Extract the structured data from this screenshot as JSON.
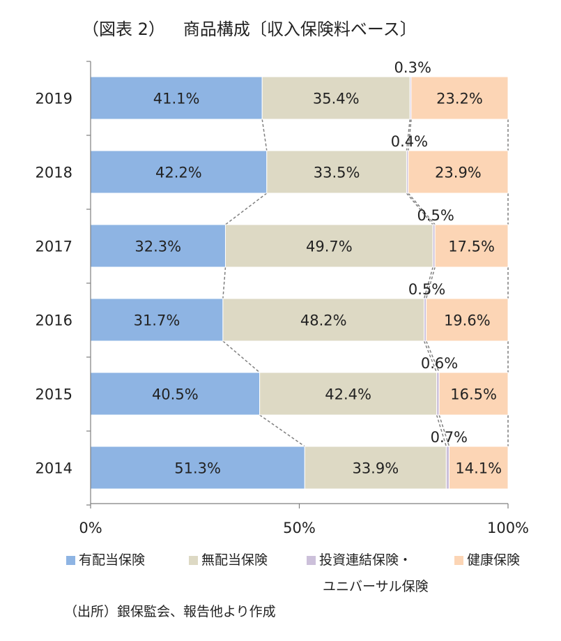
{
  "title": {
    "figure_no": "（図表 2）",
    "text": "商品構成〔収入保険料ベース〕"
  },
  "source_note": "（出所）銀保監会、報告他より作成",
  "colors": {
    "series_1": "#8eb4e3",
    "series_2": "#ddd9c4",
    "series_3": "#ccc0da",
    "series_4": "#fcd5b5",
    "axis": "#7f7f7f",
    "connector": "#7f7f7f"
  },
  "chart_data": {
    "type": "bar",
    "orientation": "horizontal",
    "stacked": "percent",
    "categories": [
      "2019",
      "2018",
      "2017",
      "2016",
      "2015",
      "2014"
    ],
    "series": [
      {
        "name": "有配当保険",
        "values": [
          41.1,
          42.2,
          32.3,
          31.7,
          40.5,
          51.3
        ],
        "labels": [
          "41.1%",
          "42.2%",
          "32.3%",
          "31.7%",
          "40.5%",
          "51.3%"
        ]
      },
      {
        "name": "無配当保険",
        "values": [
          35.4,
          33.5,
          49.7,
          48.2,
          42.4,
          33.9
        ],
        "labels": [
          "35.4%",
          "33.5%",
          "49.7%",
          "48.2%",
          "42.4%",
          "33.9%"
        ]
      },
      {
        "name": "投資連結保険・",
        "name_line2": "ユニバーサル保険",
        "values": [
          0.3,
          0.4,
          0.5,
          0.5,
          0.6,
          0.7
        ],
        "labels": [
          "0.3%",
          "0.4%",
          "0.5%",
          "0.5%",
          "0.6%",
          "0.7%"
        ]
      },
      {
        "name": "健康保険",
        "values": [
          23.2,
          23.9,
          17.5,
          19.6,
          16.5,
          14.1
        ],
        "labels": [
          "23.2%",
          "23.9%",
          "17.5%",
          "19.6%",
          "16.5%",
          "14.1%"
        ]
      }
    ],
    "xlim": [
      0,
      100
    ],
    "x_ticks": [
      "0%",
      "50%",
      "100%"
    ],
    "series_lines": true,
    "grid": false,
    "legend": "bottom"
  }
}
